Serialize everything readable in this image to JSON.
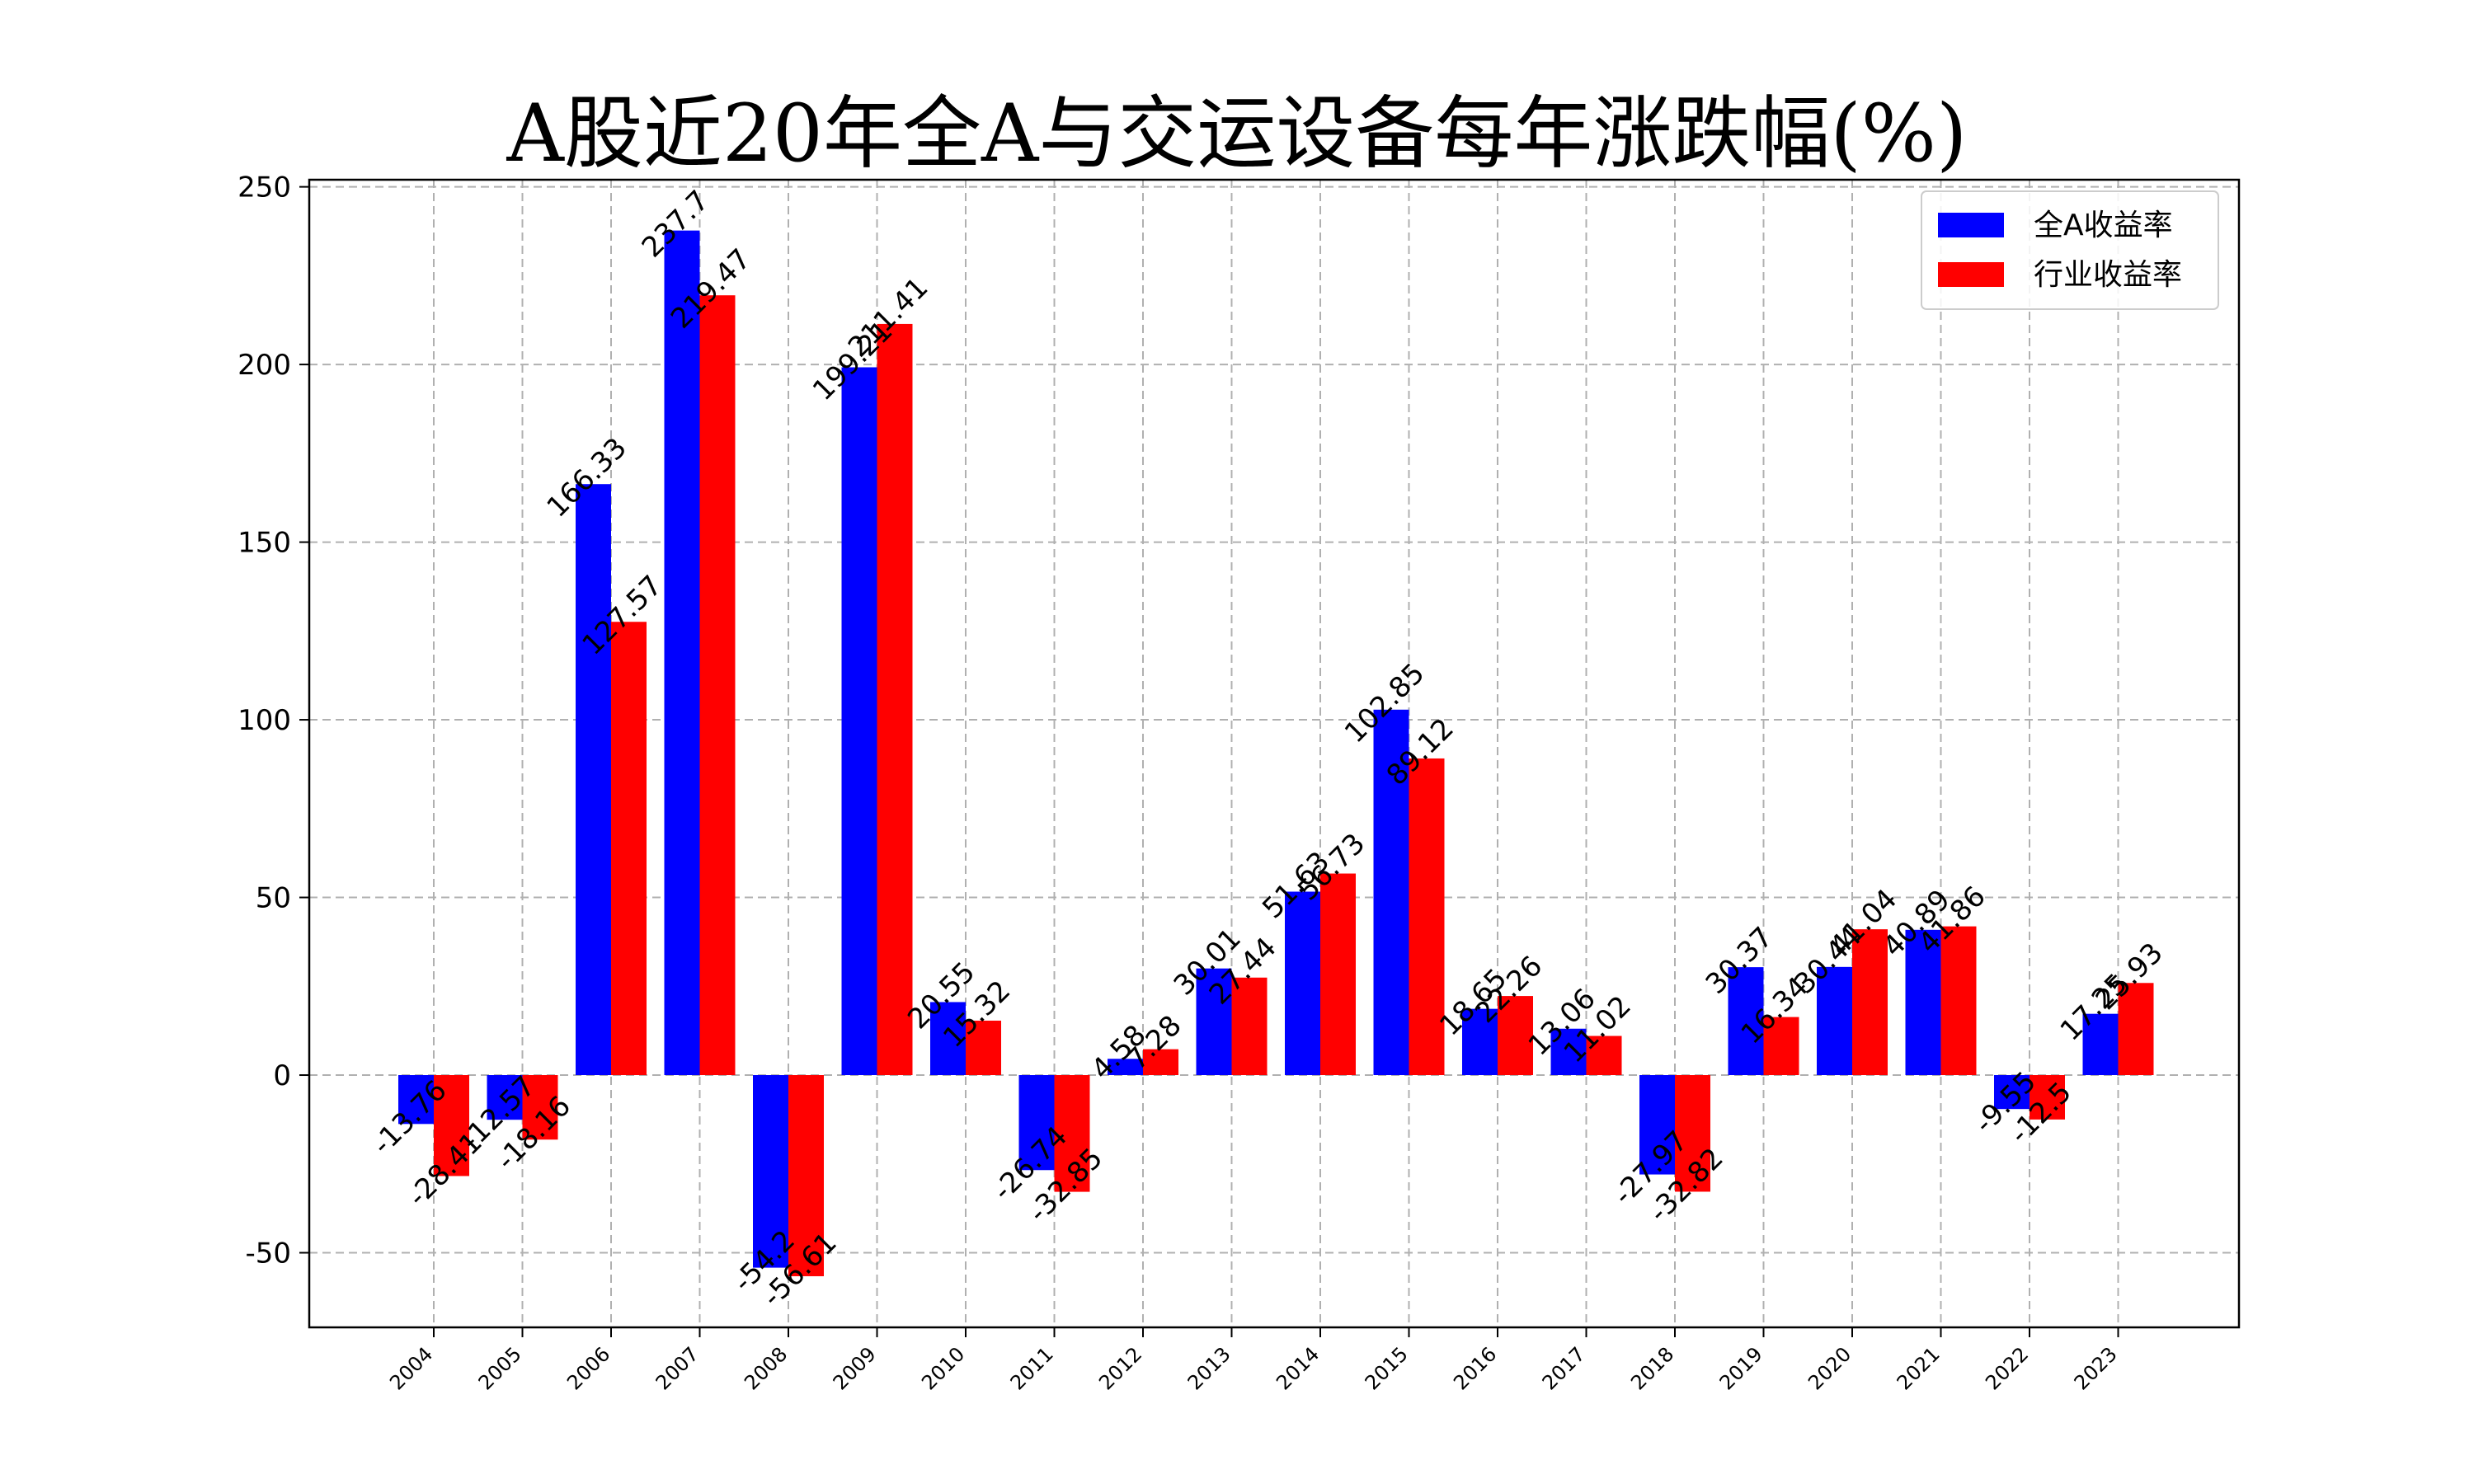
{
  "chart_data": {
    "type": "bar",
    "title": "A股近20年全A与交运设备每年涨跌幅(%)",
    "xlabel": "",
    "ylabel": "",
    "categories": [
      "2004",
      "2005",
      "2006",
      "2007",
      "2008",
      "2009",
      "2010",
      "2011",
      "2012",
      "2013",
      "2014",
      "2015",
      "2016",
      "2017",
      "2018",
      "2019",
      "2020",
      "2021",
      "2022",
      "2023"
    ],
    "series": [
      {
        "name": "全A收益率",
        "color": "#0000ff",
        "values": [
          -13.76,
          -12.57,
          166.33,
          237.7,
          -54.2,
          199.21,
          20.55,
          -26.74,
          4.58,
          30.01,
          51.63,
          102.85,
          18.65,
          13.06,
          -27.97,
          30.37,
          30.44,
          40.89,
          -9.55,
          17.25
        ],
        "labels": [
          "-13.76",
          "-12.57",
          "166.33",
          "237.7",
          "-54.2",
          "199.21",
          "20.55",
          "-26.74",
          "4.58",
          "30.01",
          "51.63",
          "102.85",
          "18.65",
          "13.06",
          "-27.97",
          "30.37",
          "30.44",
          "40.89",
          "-9.55",
          "17.25"
        ]
      },
      {
        "name": "行业收益率",
        "color": "#ff0000",
        "values": [
          -28.41,
          -18.16,
          127.57,
          219.47,
          -56.61,
          211.41,
          15.32,
          -32.85,
          7.28,
          27.44,
          56.73,
          89.12,
          22.26,
          11.02,
          -32.82,
          16.34,
          41.04,
          41.86,
          -12.5,
          25.93
        ],
        "labels": [
          "-28.41",
          "-18.16",
          "127.57",
          "219.47",
          "-56.61",
          "211.41",
          "15.32",
          "-32.85",
          "7.28",
          "27.44",
          "56.73",
          "89.12",
          "22.26",
          "11.02",
          "-32.82",
          "16.34",
          "41.04",
          "41.86",
          "-12.5",
          "25.93"
        ]
      }
    ],
    "yticks": [
      -50,
      0,
      50,
      100,
      150,
      200,
      250
    ],
    "ylim": [
      -71,
      252
    ],
    "grid": true,
    "legend_position": "top-right"
  }
}
